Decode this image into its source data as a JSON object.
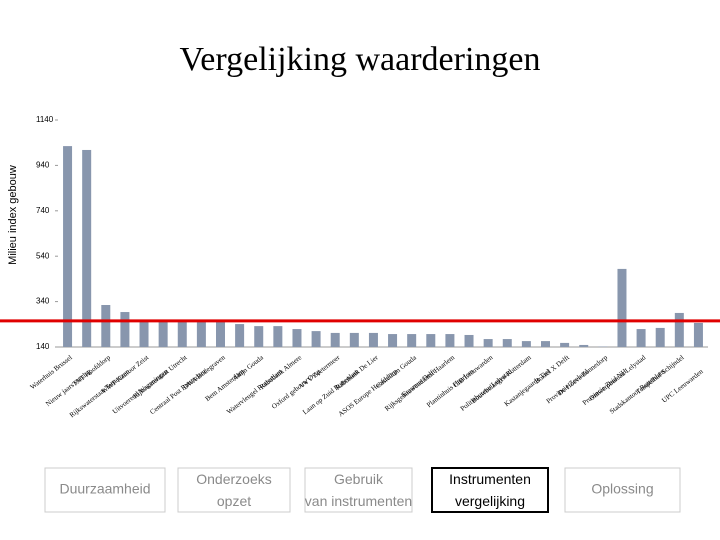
{
  "chart_data": {
    "type": "bar",
    "title": "Vergelijking waarderingen",
    "y_label": "Milieu index gebouw",
    "categories": [
      "Waterhuis Brussel",
      "Nieuw jaars verslag",
      "TNT Hoofddorp",
      "Rijkswaterstaat Terneuzen",
      "WWF Kantoor Zeist",
      "Uitvoerend Wageningen",
      "Rijkswaterstaat Utrecht",
      "Centraal Post Rotterdam",
      "DWA Bodegraven",
      "Bem Amsterdam",
      "Altijn Gouda",
      "Watervleugel Rotterdam",
      "Rabobank Almere",
      "Oxford gebouw Ovqt",
      "VVV Zoetermeer",
      "Laan op Zuid Rotterdam",
      "Rabobank De Lier",
      "ASOS Europe Hoofddorp",
      "Castellum Gouda",
      "Erasmus Delft",
      "Rijksgebouwendienst Haarlem",
      "Plantinhuis Haarlem",
      "CIB Leeuwarden",
      "Politiebureau Lelystad",
      "Bouwbelangen Rotterdam",
      "Kastanjegaarde Tiel",
      "Boxtel X Delft",
      "Provincie Zeeland",
      "De Hoeve Zonnedorp",
      "Provincie Zuid NH",
      "Ontwerpbureau Lelystad",
      "Stadskantoor Rotterdam",
      "Tempelhof Schijndel",
      "UPC Leeuwarden"
    ],
    "values": [
      1025,
      1008,
      325,
      294,
      250,
      250,
      250,
      250,
      250,
      241,
      232,
      232,
      219,
      210,
      202,
      202,
      202,
      197,
      197,
      197,
      197,
      193,
      175,
      175,
      166,
      166,
      158,
      149,
      142,
      484,
      219,
      224,
      290,
      246
    ],
    "color": "#8896ad",
    "ylim": [
      140,
      1140
    ],
    "yticks": [
      140,
      340,
      540,
      740,
      940,
      1140
    ],
    "grid": false,
    "reference_line": {
      "value": 255,
      "color": "#e00000"
    }
  },
  "nav": {
    "tabs": [
      "Duurzaamheid",
      "Onderzoeks opzet",
      "Gebruik van instrumenten",
      "Instrumenten vergelijking",
      "Oplossing"
    ],
    "active": 3
  }
}
